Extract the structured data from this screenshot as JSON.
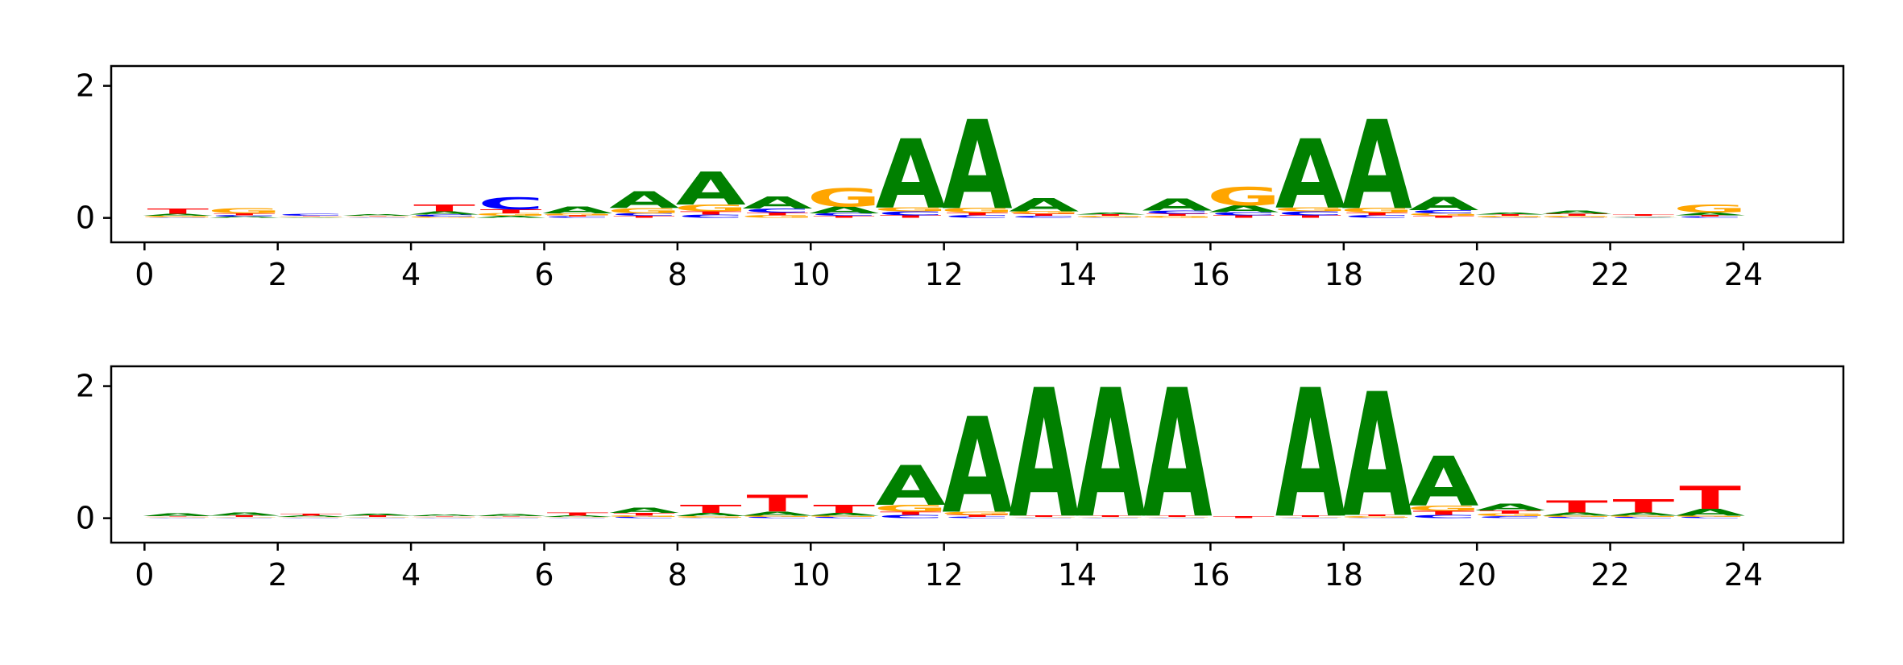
{
  "chart_data": [
    {
      "type": "sequence-logo",
      "xlim": [
        -0.5,
        25.5
      ],
      "ylim": [
        -0.37,
        2.3
      ],
      "xticks": [
        0,
        2,
        4,
        6,
        8,
        10,
        12,
        14,
        16,
        18,
        20,
        22,
        24
      ],
      "yticks": [
        0,
        2
      ],
      "letters": [
        "A",
        "C",
        "G",
        "T"
      ],
      "colors": {
        "A": "#008000",
        "C": "#0000ff",
        "G": "#ffa500",
        "T": "#ff0000"
      },
      "positions": [
        {
          "x": 0,
          "heights": {
            "A": 0.03,
            "C": 0.01,
            "G": 0.02,
            "T": 0.08
          }
        },
        {
          "x": 1,
          "heights": {
            "A": 0.02,
            "C": 0.02,
            "G": 0.08,
            "T": 0.03
          }
        },
        {
          "x": 2,
          "heights": {
            "A": 0.01,
            "C": 0.03,
            "G": 0.01,
            "T": 0.01
          }
        },
        {
          "x": 3,
          "heights": {
            "A": 0.02,
            "C": 0.01,
            "G": 0.01,
            "T": 0.01
          }
        },
        {
          "x": 4,
          "heights": {
            "A": 0.05,
            "C": 0.03,
            "G": 0.02,
            "T": 0.1
          }
        },
        {
          "x": 5,
          "heights": {
            "A": 0.03,
            "C": 0.18,
            "G": 0.04,
            "T": 0.06
          }
        },
        {
          "x": 6,
          "heights": {
            "A": 0.1,
            "C": 0.02,
            "G": 0.03,
            "T": 0.02
          }
        },
        {
          "x": 7,
          "heights": {
            "A": 0.25,
            "C": 0.04,
            "G": 0.08,
            "T": 0.03
          }
        },
        {
          "x": 8,
          "heights": {
            "A": 0.5,
            "C": 0.05,
            "G": 0.1,
            "T": 0.05
          }
        },
        {
          "x": 9,
          "heights": {
            "A": 0.18,
            "C": 0.06,
            "G": 0.04,
            "T": 0.04
          }
        },
        {
          "x": 10,
          "heights": {
            "A": 0.1,
            "C": 0.04,
            "G": 0.28,
            "T": 0.03
          }
        },
        {
          "x": 11,
          "heights": {
            "A": 1.05,
            "C": 0.06,
            "G": 0.06,
            "T": 0.04
          }
        },
        {
          "x": 12,
          "heights": {
            "A": 1.35,
            "C": 0.04,
            "G": 0.07,
            "T": 0.04
          }
        },
        {
          "x": 13,
          "heights": {
            "A": 0.2,
            "C": 0.03,
            "G": 0.04,
            "T": 0.03
          }
        },
        {
          "x": 14,
          "heights": {
            "A": 0.03,
            "C": 0.01,
            "G": 0.02,
            "T": 0.02
          }
        },
        {
          "x": 15,
          "heights": {
            "A": 0.18,
            "C": 0.05,
            "G": 0.03,
            "T": 0.03
          }
        },
        {
          "x": 16,
          "heights": {
            "A": 0.1,
            "C": 0.05,
            "G": 0.28,
            "T": 0.04
          }
        },
        {
          "x": 17,
          "heights": {
            "A": 1.05,
            "C": 0.06,
            "G": 0.06,
            "T": 0.04
          }
        },
        {
          "x": 18,
          "heights": {
            "A": 1.35,
            "C": 0.04,
            "G": 0.07,
            "T": 0.04
          }
        },
        {
          "x": 19,
          "heights": {
            "A": 0.2,
            "C": 0.05,
            "G": 0.04,
            "T": 0.03
          }
        },
        {
          "x": 20,
          "heights": {
            "A": 0.03,
            "C": 0.01,
            "G": 0.02,
            "T": 0.02
          }
        },
        {
          "x": 21,
          "heights": {
            "A": 0.05,
            "C": 0.01,
            "G": 0.02,
            "T": 0.03
          }
        },
        {
          "x": 22,
          "heights": {
            "A": 0.01,
            "C": 0.01,
            "G": 0.01,
            "T": 0.02
          }
        },
        {
          "x": 23,
          "heights": {
            "A": 0.04,
            "C": 0.02,
            "G": 0.12,
            "T": 0.02
          }
        }
      ]
    },
    {
      "type": "sequence-logo",
      "xlim": [
        -0.5,
        25.5
      ],
      "ylim": [
        -0.37,
        2.3
      ],
      "xticks": [
        0,
        2,
        4,
        6,
        8,
        10,
        12,
        14,
        16,
        18,
        20,
        22,
        24
      ],
      "yticks": [
        0,
        2
      ],
      "letters": [
        "A",
        "C",
        "G",
        "T"
      ],
      "colors": {
        "A": "#008000",
        "C": "#0000ff",
        "G": "#ffa500",
        "T": "#ff0000"
      },
      "positions": [
        {
          "x": 0,
          "heights": {
            "A": 0.04,
            "C": 0.01,
            "G": 0.01,
            "T": 0.01
          }
        },
        {
          "x": 1,
          "heights": {
            "A": 0.05,
            "C": 0.01,
            "G": 0.01,
            "T": 0.02
          }
        },
        {
          "x": 2,
          "heights": {
            "A": 0.02,
            "C": 0.01,
            "G": 0.01,
            "T": 0.03
          }
        },
        {
          "x": 3,
          "heights": {
            "A": 0.03,
            "C": 0.01,
            "G": 0.01,
            "T": 0.02
          }
        },
        {
          "x": 4,
          "heights": {
            "A": 0.02,
            "C": 0.01,
            "G": 0.01,
            "T": 0.01
          }
        },
        {
          "x": 5,
          "heights": {
            "A": 0.03,
            "C": 0.01,
            "G": 0.01,
            "T": 0.01
          }
        },
        {
          "x": 6,
          "heights": {
            "A": 0.02,
            "C": 0.01,
            "G": 0.01,
            "T": 0.05
          }
        },
        {
          "x": 7,
          "heights": {
            "A": 0.08,
            "C": 0.02,
            "G": 0.02,
            "T": 0.04
          }
        },
        {
          "x": 8,
          "heights": {
            "A": 0.05,
            "C": 0.01,
            "G": 0.02,
            "T": 0.12
          }
        },
        {
          "x": 9,
          "heights": {
            "A": 0.06,
            "C": 0.02,
            "G": 0.02,
            "T": 0.25
          }
        },
        {
          "x": 10,
          "heights": {
            "A": 0.04,
            "C": 0.02,
            "G": 0.02,
            "T": 0.12
          }
        },
        {
          "x": 11,
          "heights": {
            "A": 0.6,
            "C": 0.05,
            "G": 0.1,
            "T": 0.05
          }
        },
        {
          "x": 12,
          "heights": {
            "A": 1.45,
            "C": 0.02,
            "G": 0.05,
            "T": 0.03
          }
        },
        {
          "x": 13,
          "heights": {
            "A": 1.95,
            "C": 0.01,
            "G": 0.01,
            "T": 0.02
          }
        },
        {
          "x": 14,
          "heights": {
            "A": 1.95,
            "C": 0.01,
            "G": 0.01,
            "T": 0.02
          }
        },
        {
          "x": 15,
          "heights": {
            "A": 1.95,
            "C": 0.01,
            "G": 0.01,
            "T": 0.02
          }
        },
        {
          "x": 16,
          "heights": {
            "A": 0.0,
            "C": 0.0,
            "G": 0.0,
            "T": 0.03
          }
        },
        {
          "x": 17,
          "heights": {
            "A": 1.95,
            "C": 0.01,
            "G": 0.01,
            "T": 0.02
          }
        },
        {
          "x": 18,
          "heights": {
            "A": 1.88,
            "C": 0.01,
            "G": 0.02,
            "T": 0.02
          }
        },
        {
          "x": 19,
          "heights": {
            "A": 0.75,
            "C": 0.05,
            "G": 0.08,
            "T": 0.06
          }
        },
        {
          "x": 20,
          "heights": {
            "A": 0.1,
            "C": 0.03,
            "G": 0.04,
            "T": 0.05
          }
        },
        {
          "x": 21,
          "heights": {
            "A": 0.05,
            "C": 0.02,
            "G": 0.02,
            "T": 0.18
          }
        },
        {
          "x": 22,
          "heights": {
            "A": 0.05,
            "C": 0.02,
            "G": 0.02,
            "T": 0.2
          }
        },
        {
          "x": 23,
          "heights": {
            "A": 0.1,
            "C": 0.02,
            "G": 0.02,
            "T": 0.35
          }
        }
      ]
    }
  ]
}
